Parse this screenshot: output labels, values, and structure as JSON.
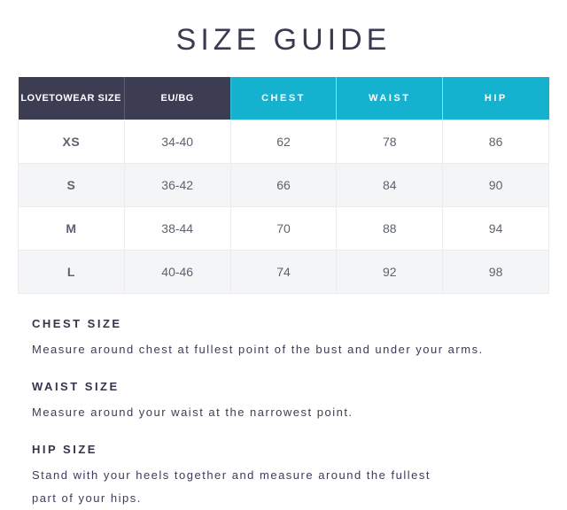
{
  "page": {
    "title": "SIZE GUIDE"
  },
  "table": {
    "headers": [
      {
        "label": "LOVETOWEAR SIZE"
      },
      {
        "label": "EU/BG"
      },
      {
        "label": "CHEST"
      },
      {
        "label": "WAIST"
      },
      {
        "label": "HIP"
      }
    ],
    "rows": [
      {
        "size": "XS",
        "eu_bg": "34-40",
        "chest": "62",
        "waist": "78",
        "hip": "86"
      },
      {
        "size": "S",
        "eu_bg": "36-42",
        "chest": "66",
        "waist": "84",
        "hip": "90"
      },
      {
        "size": "M",
        "eu_bg": "38-44",
        "chest": "70",
        "waist": "88",
        "hip": "94"
      },
      {
        "size": "L",
        "eu_bg": "40-46",
        "chest": "74",
        "waist": "92",
        "hip": "98"
      }
    ]
  },
  "sections": [
    {
      "heading": "CHEST SIZE",
      "text": "Measure around chest at fullest point of the bust and under your arms."
    },
    {
      "heading": "WAIST SIZE",
      "text": "Measure around your waist at the narrowest point."
    },
    {
      "heading": "HIP SIZE",
      "text": "Stand with your heels together and measure around the fullest\npart of your hips."
    }
  ],
  "colors": {
    "header_dark": "#3c3c52",
    "header_cyan": "#15b2d0",
    "row_alt": "#f4f5f7",
    "title_text": "#3a3a52",
    "cell_text": "#5b6370",
    "size_text": "#2f3343",
    "body_text": "#3c3c58"
  }
}
